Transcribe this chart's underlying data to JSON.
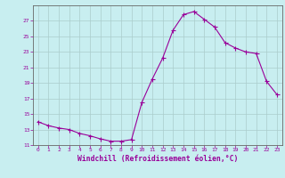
{
  "hours": [
    0,
    1,
    2,
    3,
    4,
    5,
    6,
    7,
    8,
    9,
    10,
    11,
    12,
    13,
    14,
    15,
    16,
    17,
    18,
    19,
    20,
    21,
    22,
    23
  ],
  "windchill": [
    14.0,
    13.5,
    13.2,
    13.0,
    12.5,
    12.2,
    11.8,
    11.5,
    11.5,
    11.7,
    16.5,
    19.5,
    22.2,
    25.8,
    27.8,
    28.2,
    27.2,
    26.2,
    24.2,
    23.5,
    23.0,
    22.8,
    19.2,
    17.5
  ],
  "line_color": "#990099",
  "marker_color": "#990099",
  "bg_color": "#c8eef0",
  "grid_color": "#aacccc",
  "tick_color": "#990099",
  "label_color": "#990099",
  "xlabel": "Windchill (Refroidissement éolien,°C)",
  "ylim": [
    11,
    29
  ],
  "yticks": [
    11,
    13,
    15,
    17,
    19,
    21,
    23,
    25,
    27
  ],
  "xlim": [
    -0.5,
    23.5
  ],
  "tick_fontsize": 4.5,
  "xlabel_fontsize": 5.8,
  "marker_size": 2.0,
  "line_width": 0.8
}
